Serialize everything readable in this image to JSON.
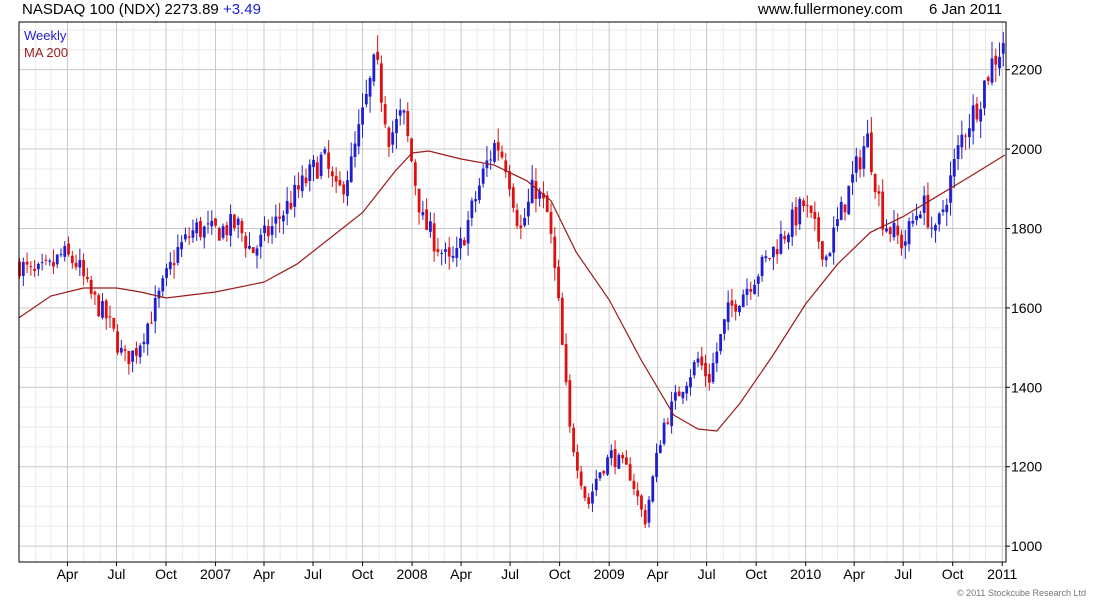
{
  "header": {
    "title": "NASDAQ 100 (NDX)",
    "last": "2273.89",
    "change": "+3.49",
    "source": "www.fullermoney.com",
    "date": "6 Jan 2011"
  },
  "legend": {
    "weekly": "Weekly",
    "ma": "MA 200"
  },
  "copyright": "© 2011 Stockcube Research Ltd",
  "colors": {
    "up": "#1f1fcf",
    "down": "#dd1111",
    "ma": "#9b1b1b",
    "grid": "#c8c8c8",
    "minor_grid": "#eaeaea",
    "change": "#1a1ae6"
  },
  "chart_data": {
    "type": "candlestick",
    "interval": "weekly",
    "x_range": [
      "2006-01-01",
      "2011-01-08"
    ],
    "ylim": [
      960,
      2320
    ],
    "y_ticks": [
      1000,
      1200,
      1400,
      1600,
      1800,
      2000,
      2200
    ],
    "x_ticks": [
      {
        "date": "2006-04-01",
        "label": "Apr"
      },
      {
        "date": "2006-07-01",
        "label": "Jul"
      },
      {
        "date": "2006-10-01",
        "label": "Oct"
      },
      {
        "date": "2007-01-01",
        "label": "2007"
      },
      {
        "date": "2007-04-01",
        "label": "Apr"
      },
      {
        "date": "2007-07-01",
        "label": "Jul"
      },
      {
        "date": "2007-10-01",
        "label": "Oct"
      },
      {
        "date": "2008-01-01",
        "label": "2008"
      },
      {
        "date": "2008-04-01",
        "label": "Apr"
      },
      {
        "date": "2008-07-01",
        "label": "Jul"
      },
      {
        "date": "2008-10-01",
        "label": "Oct"
      },
      {
        "date": "2009-01-01",
        "label": "2009"
      },
      {
        "date": "2009-04-01",
        "label": "Apr"
      },
      {
        "date": "2009-07-01",
        "label": "Jul"
      },
      {
        "date": "2009-10-01",
        "label": "Oct"
      },
      {
        "date": "2010-01-01",
        "label": "2010"
      },
      {
        "date": "2010-04-01",
        "label": "Apr"
      },
      {
        "date": "2010-07-01",
        "label": "Jul"
      },
      {
        "date": "2010-10-01",
        "label": "Oct"
      },
      {
        "date": "2011-01-01",
        "label": "2011"
      }
    ],
    "price_path": [
      [
        "2006-01-02",
        1710
      ],
      [
        "2006-01-28",
        1680
      ],
      [
        "2006-03-01",
        1700
      ],
      [
        "2006-03-22",
        1735
      ],
      [
        "2006-04-20",
        1710
      ],
      [
        "2006-05-10",
        1640
      ],
      [
        "2006-06-15",
        1570
      ],
      [
        "2006-07-15",
        1470
      ],
      [
        "2006-08-05",
        1490
      ],
      [
        "2006-09-10",
        1600
      ],
      [
        "2006-10-20",
        1740
      ],
      [
        "2006-11-25",
        1800
      ],
      [
        "2006-12-25",
        1790
      ],
      [
        "2007-02-10",
        1810
      ],
      [
        "2007-03-10",
        1740
      ],
      [
        "2007-04-15",
        1800
      ],
      [
        "2007-06-01",
        1890
      ],
      [
        "2007-07-20",
        1980
      ],
      [
        "2007-08-15",
        1880
      ],
      [
        "2007-09-10",
        1960
      ],
      [
        "2007-10-25",
        2220
      ],
      [
        "2007-11-20",
        2030
      ],
      [
        "2007-12-15",
        2090
      ],
      [
        "2008-01-20",
        1820
      ],
      [
        "2008-03-10",
        1710
      ],
      [
        "2008-03-25",
        1730
      ],
      [
        "2008-05-15",
        1950
      ],
      [
        "2008-06-05",
        2020
      ],
      [
        "2008-06-25",
        1960
      ],
      [
        "2008-07-20",
        1790
      ],
      [
        "2008-08-15",
        1910
      ],
      [
        "2008-09-10",
        1830
      ],
      [
        "2008-09-28",
        1620
      ],
      [
        "2008-10-20",
        1290
      ],
      [
        "2008-11-22",
        1100
      ],
      [
        "2008-12-10",
        1180
      ],
      [
        "2009-01-05",
        1230
      ],
      [
        "2009-02-10",
        1180
      ],
      [
        "2009-03-08",
        1060
      ],
      [
        "2009-04-10",
        1300
      ],
      [
        "2009-05-15",
        1400
      ],
      [
        "2009-06-15",
        1470
      ],
      [
        "2009-07-05",
        1420
      ],
      [
        "2009-08-10",
        1590
      ],
      [
        "2009-10-20",
        1720
      ],
      [
        "2009-12-28",
        1860
      ],
      [
        "2010-02-08",
        1730
      ],
      [
        "2010-04-25",
        2030
      ],
      [
        "2010-05-25",
        1820
      ],
      [
        "2010-07-01",
        1760
      ],
      [
        "2010-08-05",
        1870
      ],
      [
        "2010-08-30",
        1780
      ],
      [
        "2010-10-20",
        2040
      ],
      [
        "2010-11-18",
        2120
      ],
      [
        "2010-12-10",
        2210
      ],
      [
        "2011-01-06",
        2274
      ]
    ],
    "ma200": [
      [
        "2006-01-01",
        1575
      ],
      [
        "2006-03-01",
        1630
      ],
      [
        "2006-05-01",
        1650
      ],
      [
        "2006-07-01",
        1650
      ],
      [
        "2006-08-15",
        1640
      ],
      [
        "2006-10-01",
        1625
      ],
      [
        "2007-01-01",
        1640
      ],
      [
        "2007-04-01",
        1665
      ],
      [
        "2007-06-01",
        1710
      ],
      [
        "2007-08-01",
        1775
      ],
      [
        "2007-10-01",
        1840
      ],
      [
        "2007-12-01",
        1945
      ],
      [
        "2008-01-01",
        1990
      ],
      [
        "2008-02-01",
        1995
      ],
      [
        "2008-04-01",
        1975
      ],
      [
        "2008-06-01",
        1960
      ],
      [
        "2008-08-01",
        1920
      ],
      [
        "2008-09-15",
        1870
      ],
      [
        "2008-11-01",
        1740
      ],
      [
        "2009-01-01",
        1620
      ],
      [
        "2009-03-01",
        1470
      ],
      [
        "2009-05-01",
        1330
      ],
      [
        "2009-06-15",
        1295
      ],
      [
        "2009-07-20",
        1290
      ],
      [
        "2009-09-01",
        1360
      ],
      [
        "2009-11-01",
        1480
      ],
      [
        "2010-01-01",
        1610
      ],
      [
        "2010-03-01",
        1710
      ],
      [
        "2010-05-01",
        1790
      ],
      [
        "2010-07-01",
        1830
      ],
      [
        "2010-09-01",
        1880
      ],
      [
        "2010-11-01",
        1930
      ],
      [
        "2011-01-06",
        1985
      ]
    ],
    "x_label_year_ticks": [
      "2007",
      "2008",
      "2009",
      "2010",
      "2011"
    ]
  }
}
